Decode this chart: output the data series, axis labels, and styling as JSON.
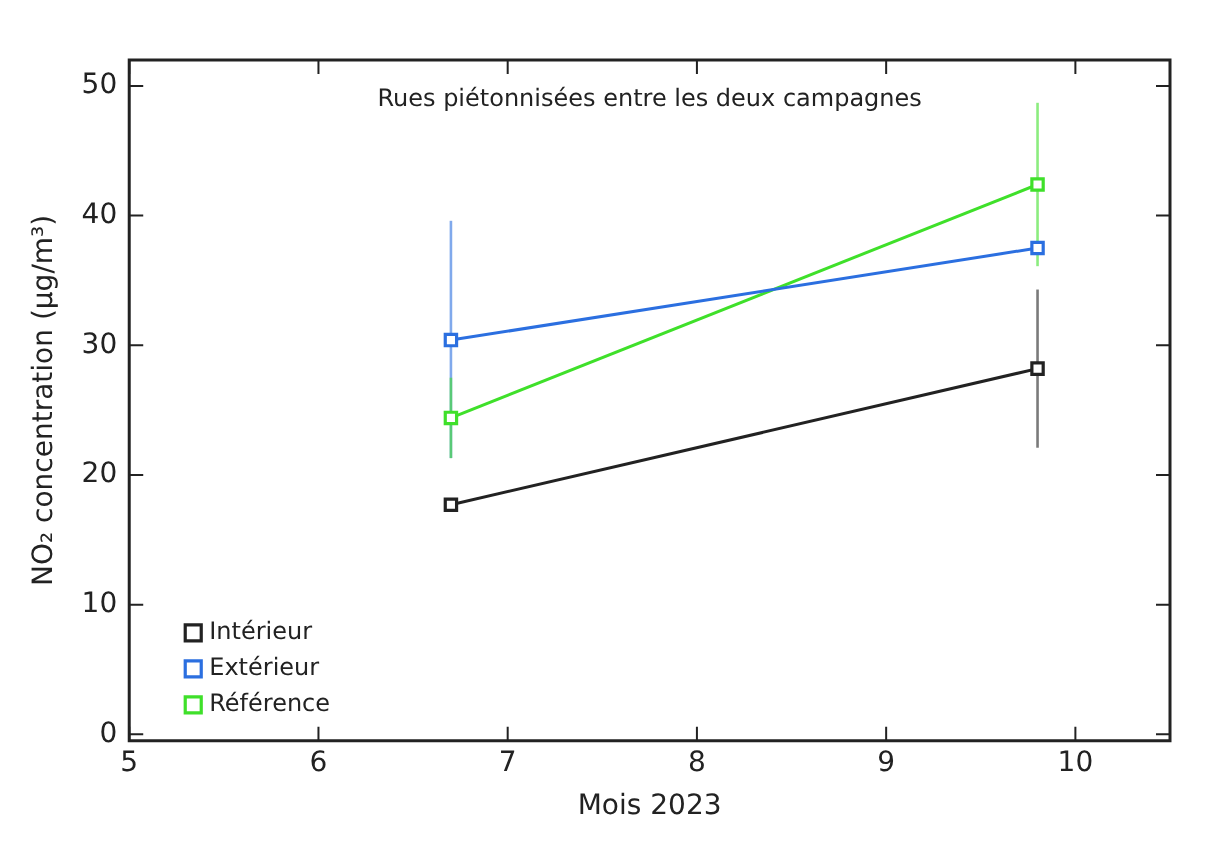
{
  "chart_data": {
    "type": "line",
    "title": "Rues piétonnisées entre les deux campagnes",
    "xlabel": "Mois 2023",
    "ylabel": "NO₂ concentration (μg/m³)",
    "x": [
      6.7,
      9.8
    ],
    "series": [
      {
        "name": "Intérieur",
        "color": "#222222",
        "values": [
          17.7,
          28.2
        ],
        "errors": [
          null,
          [
            22.1,
            34.3
          ]
        ]
      },
      {
        "name": "Extérieur",
        "color": "#2b6fe0",
        "values": [
          30.4,
          37.5
        ],
        "errors": [
          [
            21.3,
            39.6
          ],
          null
        ]
      },
      {
        "name": "Référence",
        "color": "#3fe02a",
        "values": [
          24.4,
          42.4
        ],
        "errors": [
          [
            21.3,
            27.5
          ],
          [
            36.1,
            48.7
          ]
        ]
      }
    ],
    "xlim": [
      5,
      10.5
    ],
    "xticks": [
      5,
      6,
      7,
      8,
      9,
      10
    ],
    "ylim": [
      -0.5,
      52
    ],
    "yticks": [
      0,
      10,
      20,
      30,
      40,
      50
    ],
    "grid": false,
    "legend": "bottom left",
    "marker": "square",
    "line_style": "solid"
  }
}
